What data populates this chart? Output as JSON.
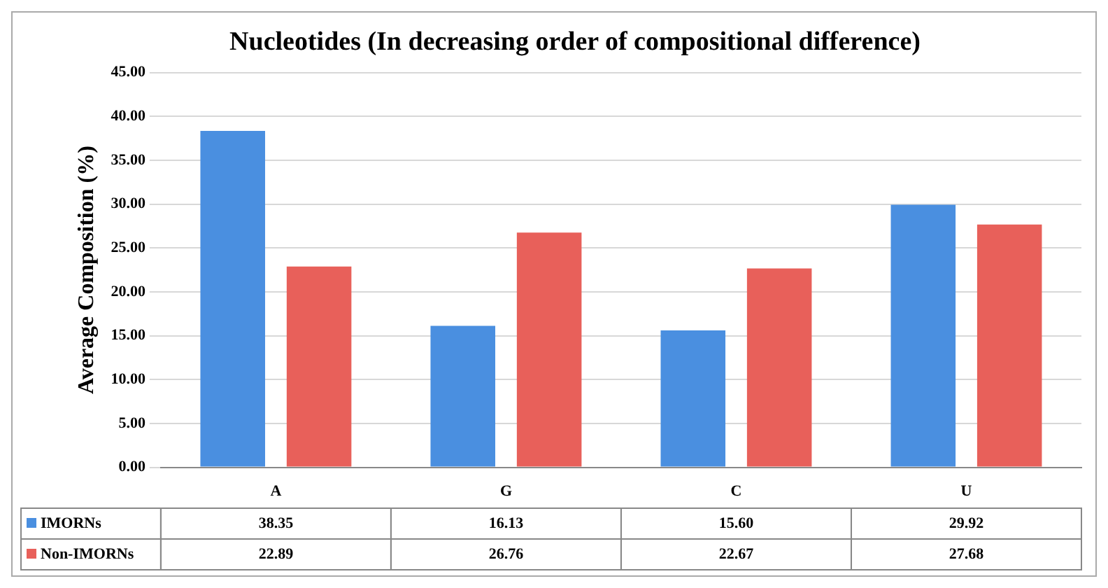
{
  "chart_data": {
    "type": "bar",
    "title": "Nucleotides (In decreasing order of compositional difference)",
    "ylabel": "Average Composition (%)",
    "categories": [
      "A",
      "G",
      "C",
      "U"
    ],
    "series": [
      {
        "name": "IMORNs",
        "color": "#4a8fe0",
        "values": [
          38.35,
          16.13,
          15.6,
          29.92
        ],
        "value_labels": [
          "38.35",
          "16.13",
          "15.60",
          "29.92"
        ]
      },
      {
        "name": "Non-IMORNs",
        "color": "#e8605a",
        "values": [
          22.89,
          26.76,
          22.67,
          27.68
        ],
        "value_labels": [
          "22.89",
          "26.76",
          "22.67",
          "27.68"
        ]
      }
    ],
    "ylim": [
      0,
      45
    ],
    "yticks": [
      {
        "value": 0,
        "label": "0.00"
      },
      {
        "value": 5,
        "label": "5.00"
      },
      {
        "value": 10,
        "label": "10.00"
      },
      {
        "value": 15,
        "label": "15.00"
      },
      {
        "value": 20,
        "label": "20.00"
      },
      {
        "value": 25,
        "label": "25.00"
      },
      {
        "value": 30,
        "label": "30.00"
      },
      {
        "value": 35,
        "label": "35.00"
      },
      {
        "value": 40,
        "label": "40.00"
      },
      {
        "value": 45,
        "label": "45.00"
      }
    ],
    "grid": "y",
    "data_labels": true,
    "legend": "bottom"
  }
}
